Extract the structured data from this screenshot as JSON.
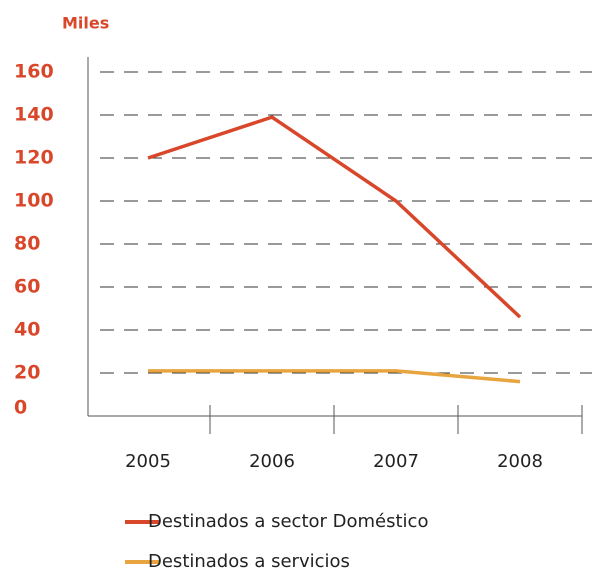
{
  "chart_data": {
    "type": "line",
    "y_unit_label": "Miles",
    "categories": [
      "2005",
      "2006",
      "2007",
      "2008"
    ],
    "series": [
      {
        "name": "Destinados a sector Doméstico",
        "color": "#d9472b",
        "values": [
          120,
          139,
          100,
          46
        ]
      },
      {
        "name": "Destinados a servicios",
        "color": "#e8a53f",
        "values": [
          21,
          21,
          21,
          16
        ]
      }
    ],
    "ylim": [
      0,
      160
    ],
    "yticks": [
      0,
      20,
      40,
      60,
      80,
      100,
      120,
      140,
      160
    ],
    "grid": true
  }
}
